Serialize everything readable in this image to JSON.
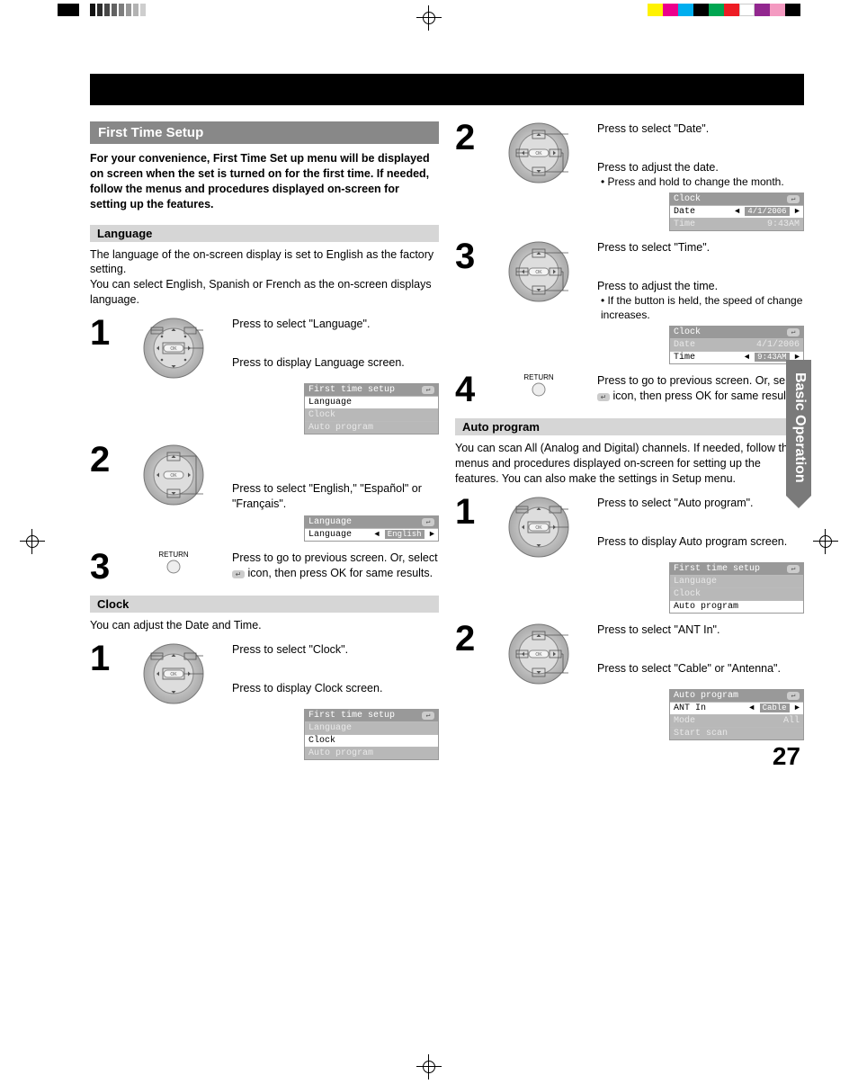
{
  "page_number": "27",
  "side_tab": "Basic Operation",
  "left": {
    "first_time_setup_header": "First Time Setup",
    "intro": "For your convenience, First Time Set up menu will be displayed on screen when the set is turned on for the first time. If needed, follow the menus and procedures displayed on-screen for setting up the features.",
    "language": {
      "header": "Language",
      "body": "The language of the on-screen display is set to English as the factory setting.\nYou can select English, Spanish or French as the on-screen displays language.",
      "step1a": "Press to select \"Language\".",
      "step1b": "Press to display Language screen.",
      "osd1_title": "First time setup",
      "osd1_items": [
        "Language",
        "Clock",
        "Auto program"
      ],
      "step2": "Press to select \"English,\" \"Español\" or \"Français\".",
      "osd2_title": "Language",
      "osd2_label": "Language",
      "osd2_value": "English",
      "step3": "Press to go to previous screen. Or, select      icon, then press OK for same results.",
      "return_label": "RETURN"
    },
    "clock": {
      "header": "Clock",
      "body": "You can adjust the Date and Time.",
      "step1a": "Press to select \"Clock\".",
      "step1b": "Press to display Clock screen.",
      "osd_title": "First time setup",
      "osd_items": [
        "Language",
        "Clock",
        "Auto program"
      ]
    }
  },
  "right": {
    "clock_cont": {
      "step2a": "Press to select \"Date\".",
      "step2b": "Press to adjust the date.",
      "step2_bullet": "• Press and hold to change the month.",
      "osd1_title": "Clock",
      "osd1_date_label": "Date",
      "osd1_date_val": "4/1/2006",
      "osd1_time_label": "Time",
      "osd1_time_val": "9:43AM",
      "step3a": "Press to select \"Time\".",
      "step3b": "Press to adjust the time.",
      "step3_bullet": "• If the button is held, the speed of change increases.",
      "osd2_title": "Clock",
      "osd2_date_label": "Date",
      "osd2_date_val": "4/1/2006",
      "osd2_time_label": "Time",
      "osd2_time_val": "9:43AM",
      "step4": "Press to go to previous screen. Or, select      icon, then press OK for same results.",
      "return_label": "RETURN"
    },
    "auto_program": {
      "header": "Auto program",
      "body": "You can scan All (Analog and Digital) channels. If needed, follow the menus and procedures displayed on-screen for setting up the features. You can also make the settings in Setup menu.",
      "step1a": "Press to select \"Auto program\".",
      "step1b": "Press to display Auto program screen.",
      "osd1_title": "First time setup",
      "osd1_items": [
        "Language",
        "Clock",
        "Auto program"
      ],
      "step2a": "Press to select \"ANT In\".",
      "step2b": "Press to select \"Cable\" or \"Antenna\".",
      "osd2_title": "Auto program",
      "osd2_ant_label": "ANT In",
      "osd2_ant_val": "Cable",
      "osd2_mode_label": "Mode",
      "osd2_mode_val": "All",
      "osd2_start": "Start scan"
    }
  },
  "reg": {
    "gray_swatches": [
      "#111",
      "#2c2c2c",
      "#474747",
      "#626262",
      "#7d7d7d",
      "#989898",
      "#b3b3b3",
      "#cecece"
    ],
    "color_swatches": [
      "#fff200",
      "#ec008c",
      "#00aeef",
      "#000000",
      "#00a651",
      "#ed1c24",
      "#ffffff",
      "#92278f",
      "#f49ac1",
      "#000000"
    ]
  }
}
